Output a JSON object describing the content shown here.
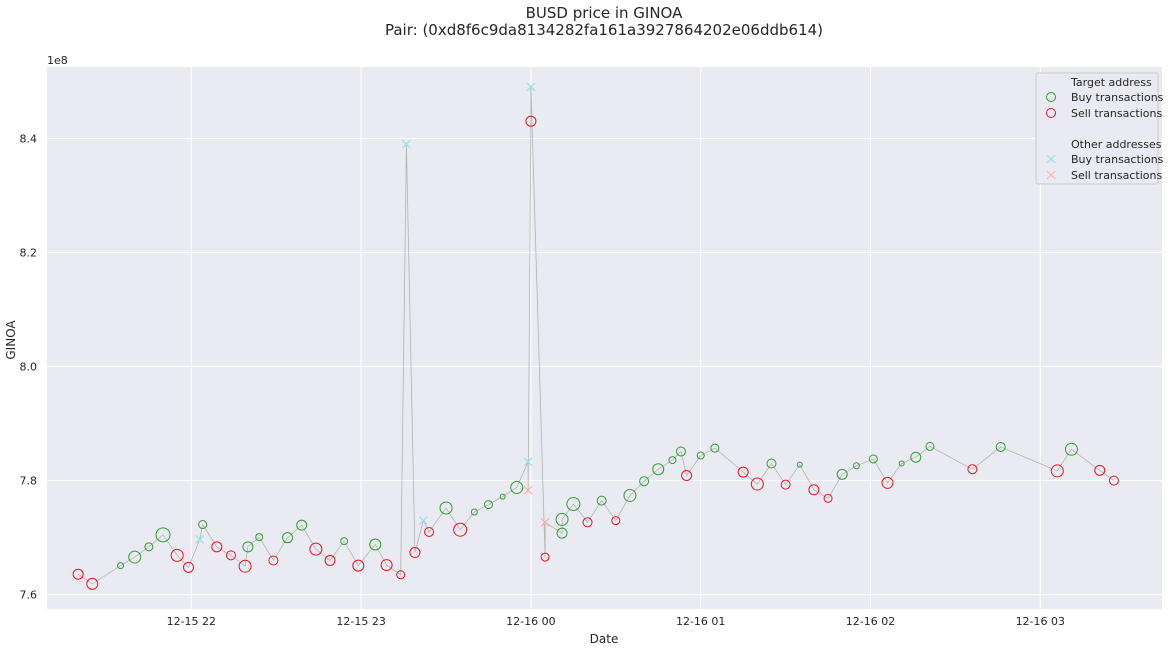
{
  "chart_data": {
    "type": "scatter",
    "title": "BUSD price in GINOA",
    "subtitle": "Pair: (0xd8f6c9da8134282fa161a3927864202e06ddb614)",
    "xlabel": "Date",
    "ylabel": "GINOA",
    "y_offset_label": "1e8",
    "x_tick_labels": [
      "12-15 22",
      "12-15 23",
      "12-16 00",
      "12-16 01",
      "12-16 02",
      "12-16 03"
    ],
    "y_ticks": [
      7.6,
      7.8,
      8.0,
      8.2,
      8.4
    ],
    "y_tick_labels": [
      "7.6",
      "7.8",
      "8.0",
      "8.2",
      "8.4"
    ],
    "xlim": [
      "2021-12-15 21:09",
      "2021-12-16 03:43"
    ],
    "ylim": [
      7.575,
      8.525
    ],
    "grid": true,
    "legend_position": "top-right",
    "legend": {
      "target_header": "Target address",
      "other_header": "Other addresses",
      "buy_label": "Buy transactions",
      "sell_label": "Sell transactions"
    },
    "colors": {
      "background": "#eaeaf2",
      "grid": "#ffffff",
      "buy": "#2ca02c",
      "sell": "#e8141b",
      "other_buy": "#8fe3e6",
      "other_sell": "#ffaaaa",
      "line": "#b3b3b3"
    },
    "series": [
      {
        "name": "Target address - Buy transactions",
        "marker": "circle",
        "points": [
          {
            "x": "2021-12-15 21:35",
            "y": 7.651,
            "size": 3
          },
          {
            "x": "2021-12-15 21:40",
            "y": 7.666,
            "size": 6
          },
          {
            "x": "2021-12-15 21:45",
            "y": 7.684,
            "size": 4
          },
          {
            "x": "2021-12-15 21:50",
            "y": 7.705,
            "size": 7
          },
          {
            "x": "2021-12-15 22:04",
            "y": 7.723,
            "size": 4
          },
          {
            "x": "2021-12-15 22:20",
            "y": 7.684,
            "size": 5
          },
          {
            "x": "2021-12-15 22:24",
            "y": 7.701,
            "size": 3.5
          },
          {
            "x": "2021-12-15 22:34",
            "y": 7.7,
            "size": 5
          },
          {
            "x": "2021-12-15 22:39",
            "y": 7.722,
            "size": 5
          },
          {
            "x": "2021-12-15 22:54",
            "y": 7.694,
            "size": 3.5
          },
          {
            "x": "2021-12-15 23:05",
            "y": 7.688,
            "size": 5.5
          },
          {
            "x": "2021-12-15 23:30",
            "y": 7.752,
            "size": 6
          },
          {
            "x": "2021-12-15 23:40",
            "y": 7.745,
            "size": 3
          },
          {
            "x": "2021-12-15 23:45",
            "y": 7.758,
            "size": 4
          },
          {
            "x": "2021-12-15 23:50",
            "y": 7.772,
            "size": 2.5
          },
          {
            "x": "2021-12-15 23:55",
            "y": 7.788,
            "size": 6
          },
          {
            "x": "2021-12-16 00:11",
            "y": 7.708,
            "size": 5
          },
          {
            "x": "2021-12-16 00:11",
            "y": 7.732,
            "size": 6
          },
          {
            "x": "2021-12-16 00:15",
            "y": 7.759,
            "size": 6.5
          },
          {
            "x": "2021-12-16 00:25",
            "y": 7.765,
            "size": 4.5
          },
          {
            "x": "2021-12-16 00:35",
            "y": 7.774,
            "size": 6
          },
          {
            "x": "2021-12-16 00:40",
            "y": 7.799,
            "size": 4.5
          },
          {
            "x": "2021-12-16 00:45",
            "y": 7.82,
            "size": 5.5
          },
          {
            "x": "2021-12-16 00:50",
            "y": 7.836,
            "size": 3.5
          },
          {
            "x": "2021-12-16 00:53",
            "y": 7.851,
            "size": 4.5
          },
          {
            "x": "2021-12-16 01:00",
            "y": 7.844,
            "size": 3.5
          },
          {
            "x": "2021-12-16 01:05",
            "y": 7.857,
            "size": 4
          },
          {
            "x": "2021-12-16 01:25",
            "y": 7.83,
            "size": 4.5
          },
          {
            "x": "2021-12-16 01:35",
            "y": 7.828,
            "size": 2.5
          },
          {
            "x": "2021-12-16 01:50",
            "y": 7.811,
            "size": 5
          },
          {
            "x": "2021-12-16 01:55",
            "y": 7.826,
            "size": 3
          },
          {
            "x": "2021-12-16 02:01",
            "y": 7.838,
            "size": 4
          },
          {
            "x": "2021-12-16 02:11",
            "y": 7.83,
            "size": 2.5
          },
          {
            "x": "2021-12-16 02:16",
            "y": 7.841,
            "size": 5
          },
          {
            "x": "2021-12-16 02:21",
            "y": 7.86,
            "size": 4
          },
          {
            "x": "2021-12-16 02:46",
            "y": 7.859,
            "size": 4.5
          },
          {
            "x": "2021-12-16 03:11",
            "y": 7.855,
            "size": 6
          }
        ]
      },
      {
        "name": "Target address - Sell transactions",
        "marker": "circle",
        "points": [
          {
            "x": "2021-12-15 21:20",
            "y": 7.636,
            "size": 5
          },
          {
            "x": "2021-12-15 21:25",
            "y": 7.619,
            "size": 5.5
          },
          {
            "x": "2021-12-15 21:55",
            "y": 7.669,
            "size": 6
          },
          {
            "x": "2021-12-15 21:59",
            "y": 7.648,
            "size": 5
          },
          {
            "x": "2021-12-15 22:09",
            "y": 7.684,
            "size": 5
          },
          {
            "x": "2021-12-15 22:14",
            "y": 7.669,
            "size": 4.5
          },
          {
            "x": "2021-12-15 22:19",
            "y": 7.65,
            "size": 6
          },
          {
            "x": "2021-12-15 22:29",
            "y": 7.66,
            "size": 4.5
          },
          {
            "x": "2021-12-15 22:44",
            "y": 7.68,
            "size": 6
          },
          {
            "x": "2021-12-15 22:49",
            "y": 7.66,
            "size": 5
          },
          {
            "x": "2021-12-15 22:59",
            "y": 7.651,
            "size": 5.5
          },
          {
            "x": "2021-12-15 23:09",
            "y": 7.652,
            "size": 5.5
          },
          {
            "x": "2021-12-15 23:14",
            "y": 7.635,
            "size": 4
          },
          {
            "x": "2021-12-15 23:19",
            "y": 7.674,
            "size": 5
          },
          {
            "x": "2021-12-15 23:24",
            "y": 7.71,
            "size": 4.5
          },
          {
            "x": "2021-12-15 23:35",
            "y": 7.714,
            "size": 6.5
          },
          {
            "x": "2021-12-16 00:00",
            "y": 8.43,
            "size": 5
          },
          {
            "x": "2021-12-16 00:05",
            "y": 7.666,
            "size": 4
          },
          {
            "x": "2021-12-16 00:20",
            "y": 7.727,
            "size": 4.5
          },
          {
            "x": "2021-12-16 00:30",
            "y": 7.73,
            "size": 4
          },
          {
            "x": "2021-12-16 00:55",
            "y": 7.809,
            "size": 5
          },
          {
            "x": "2021-12-16 01:15",
            "y": 7.815,
            "size": 5
          },
          {
            "x": "2021-12-16 01:20",
            "y": 7.794,
            "size": 6
          },
          {
            "x": "2021-12-16 01:30",
            "y": 7.793,
            "size": 4.5
          },
          {
            "x": "2021-12-16 01:40",
            "y": 7.784,
            "size": 5
          },
          {
            "x": "2021-12-16 01:45",
            "y": 7.769,
            "size": 4
          },
          {
            "x": "2021-12-16 02:06",
            "y": 7.796,
            "size": 5.5
          },
          {
            "x": "2021-12-16 02:36",
            "y": 7.82,
            "size": 4.5
          },
          {
            "x": "2021-12-16 03:06",
            "y": 7.817,
            "size": 6
          },
          {
            "x": "2021-12-16 03:21",
            "y": 7.818,
            "size": 5
          },
          {
            "x": "2021-12-16 03:26",
            "y": 7.8,
            "size": 4.5
          }
        ]
      },
      {
        "name": "Other addresses - Buy transactions",
        "marker": "x",
        "points": [
          {
            "x": "2021-12-15 22:03",
            "y": 7.697
          },
          {
            "x": "2021-12-15 23:16",
            "y": 8.39
          },
          {
            "x": "2021-12-15 23:22",
            "y": 7.73
          },
          {
            "x": "2021-12-15 23:59",
            "y": 7.833
          },
          {
            "x": "2021-12-16 00:00",
            "y": 8.49
          }
        ]
      },
      {
        "name": "Other addresses - Sell transactions",
        "marker": "x",
        "points": [
          {
            "x": "2021-12-15 23:59",
            "y": 7.783
          },
          {
            "x": "2021-12-16 00:05",
            "y": 7.727
          }
        ]
      }
    ]
  }
}
